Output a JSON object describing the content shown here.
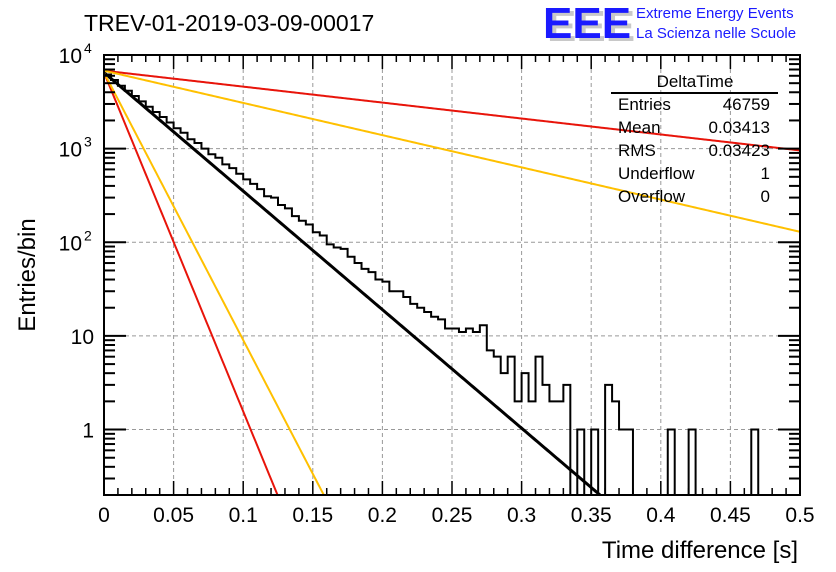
{
  "chart_data": {
    "type": "histogram",
    "title": "TREV-01-2019-03-09-00017",
    "xlabel": "Time difference [s]",
    "ylabel": "Entries/bin",
    "xlim": [
      0,
      0.5
    ],
    "ylim": [
      0.2,
      10000
    ],
    "yscale": "log",
    "grid": true,
    "x_ticks": [
      "0",
      "0.05",
      "0.1",
      "0.15",
      "0.2",
      "0.25",
      "0.3",
      "0.35",
      "0.4",
      "0.45",
      "0.5"
    ],
    "x_tick_values": [
      0,
      0.05,
      0.1,
      0.15,
      0.2,
      0.25,
      0.3,
      0.35,
      0.4,
      0.45,
      0.5
    ],
    "y_ticks": [
      {
        "value": 1,
        "base": "1",
        "exp": ""
      },
      {
        "value": 10,
        "base": "10",
        "exp": ""
      },
      {
        "value": 100,
        "base": "10",
        "exp": "2"
      },
      {
        "value": 1000,
        "base": "10",
        "exp": "3"
      },
      {
        "value": 10000,
        "base": "10",
        "exp": "4"
      }
    ],
    "bin_width": 0.005,
    "histogram": {
      "name": "DeltaTime",
      "bin_edges_start": 0,
      "counts": [
        6200,
        5400,
        4700,
        4150,
        3650,
        3200,
        2800,
        2460,
        2180,
        1900,
        1650,
        1480,
        1260,
        1150,
        1000,
        870,
        800,
        680,
        620,
        540,
        470,
        420,
        370,
        310,
        300,
        250,
        230,
        190,
        170,
        155,
        128,
        118,
        95,
        88,
        85,
        70,
        60,
        52,
        48,
        40,
        38,
        30,
        30,
        26,
        22,
        20,
        18,
        16,
        15,
        12,
        12,
        11,
        12,
        11,
        13,
        7,
        6,
        4,
        6,
        2,
        4,
        2,
        6,
        3,
        2,
        2,
        3,
        0,
        1,
        0,
        1,
        0,
        3,
        2,
        1,
        1,
        0.1,
        0.1,
        0.1,
        0.1,
        0.1,
        1,
        0.1,
        0.1,
        1,
        0.1,
        0.1,
        0.1,
        0.1,
        0.1,
        0.1,
        0.1,
        0.1,
        1,
        0.1,
        0.1,
        0.1,
        0.1,
        0.1,
        0.1
      ],
      "color": "#000000"
    },
    "fits": [
      {
        "name": "fit",
        "color": "#000000",
        "y0": 6500,
        "tau": 0.0343
      },
      {
        "name": "red-steep",
        "color": "#e8140a",
        "y0": 6500,
        "tau": 0.012
      },
      {
        "name": "yellow-steep",
        "color": "#ffc000",
        "y0": 6500,
        "tau": 0.0152
      },
      {
        "name": "red-shallow",
        "color": "#e8140a",
        "y0": 6800,
        "tau": 0.255
      },
      {
        "name": "yellow-shallow",
        "color": "#ffc000",
        "y0": 6800,
        "tau": 0.1262
      }
    ],
    "stats_box": {
      "title": "DeltaTime",
      "rows": [
        {
          "label": "Entries",
          "value": "46759"
        },
        {
          "label": "Mean",
          "value": "0.03413"
        },
        {
          "label": "RMS",
          "value": "0.03423"
        },
        {
          "label": "Underflow",
          "value": "1"
        },
        {
          "label": "Overflow",
          "value": "0"
        }
      ],
      "placement": "top-right"
    }
  },
  "logo": {
    "letters": "EEE",
    "line1": "Extreme Energy Events",
    "line2": "La Scienza nelle Scuole",
    "color": "#1a1aff"
  }
}
